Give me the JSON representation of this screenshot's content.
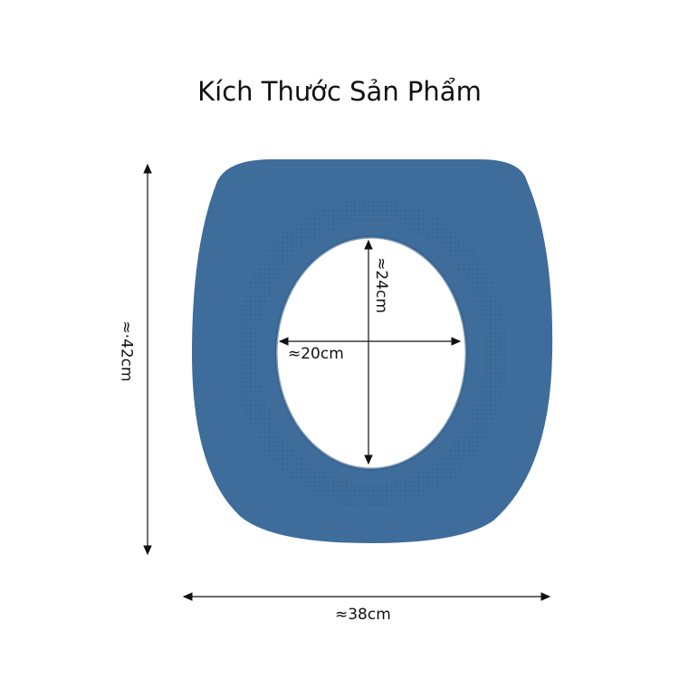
{
  "title": "Kích Thước Sản Phẩm",
  "colors": {
    "seat": "#3e6c9b",
    "seat_shadow": "#2f5a86",
    "line": "#111111"
  },
  "dimensions": {
    "height": "≈·42cm",
    "width": "≈38cm",
    "inner_height": "≈24cm",
    "inner_width": "≈20cm"
  }
}
